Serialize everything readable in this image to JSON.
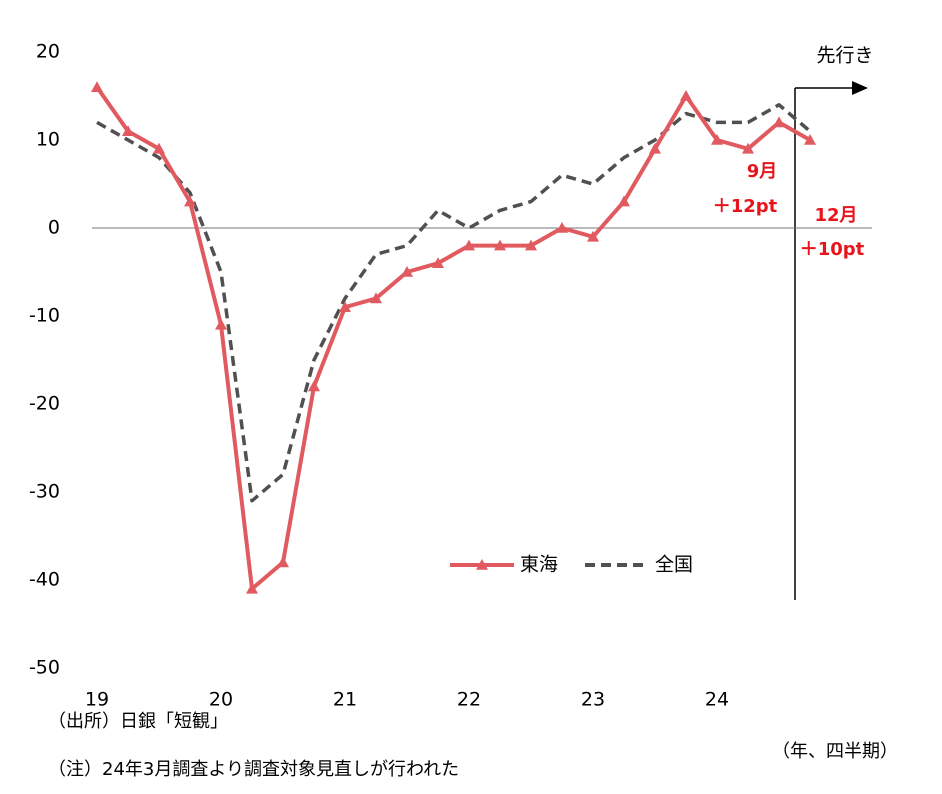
{
  "chart_data": {
    "type": "line",
    "categories": [
      "19",
      null,
      null,
      null,
      "20",
      null,
      null,
      null,
      "21",
      null,
      null,
      null,
      "22",
      null,
      null,
      null,
      "23",
      null,
      null,
      null,
      "24",
      null,
      null,
      null
    ],
    "series": [
      {
        "name": "東海",
        "color": "#e05a60",
        "style": "solid",
        "marker": "triangle",
        "values": [
          16,
          11,
          9,
          3,
          -11,
          -41,
          -38,
          -18,
          -9,
          -8,
          -5,
          -4,
          -2,
          -2,
          -2,
          0,
          -1,
          3,
          9,
          15,
          10,
          9,
          12,
          10
        ]
      },
      {
        "name": "全国",
        "color": "#505050",
        "style": "dashed",
        "marker": "none",
        "values": [
          12,
          10,
          8,
          4,
          -5,
          -31,
          -28,
          -15,
          -8,
          -3,
          -2,
          2,
          0,
          2,
          3,
          6,
          5,
          8,
          10,
          13,
          12,
          12,
          14,
          11
        ]
      }
    ],
    "ylim": [
      -50,
      20
    ],
    "yticks": [
      -50,
      -40,
      -30,
      -20,
      -10,
      0,
      10,
      20
    ],
    "zero_line": true,
    "grid": false,
    "forecast_label": "先行き",
    "annotations": [
      {
        "month": "9月",
        "change": "＋12pt"
      },
      {
        "month": "12月",
        "change": "＋10pt"
      }
    ],
    "x_unit": "（年、四半期）",
    "notes": [
      "（出所）日銀「短観」",
      "（注）24年3月調査より調査対象見直しが行われた"
    ]
  }
}
